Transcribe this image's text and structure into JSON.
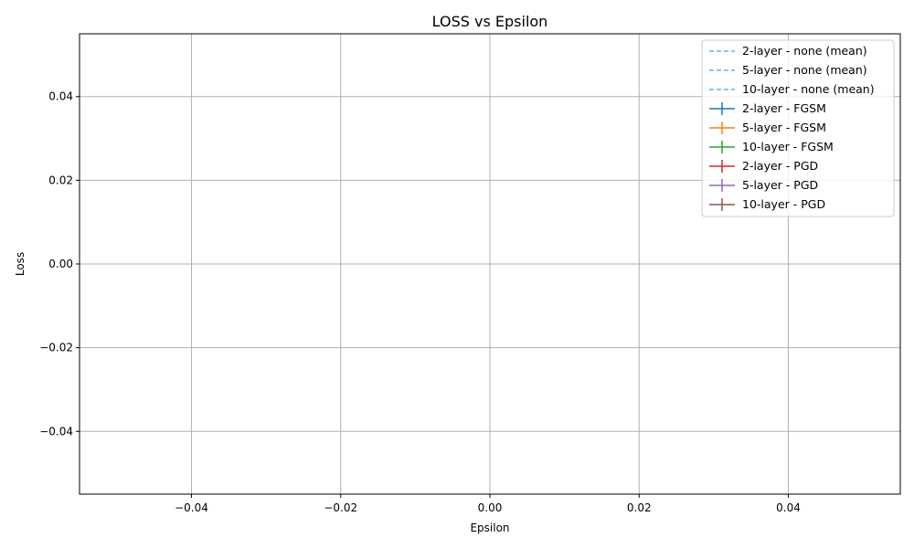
{
  "chart_data": {
    "type": "line",
    "title": "LOSS vs Epsilon",
    "xlabel": "Epsilon",
    "ylabel": "Loss",
    "xlim": [
      -0.055,
      0.055
    ],
    "ylim": [
      -0.055,
      0.055
    ],
    "xticks": [
      -0.04,
      -0.02,
      0.0,
      0.02,
      0.04
    ],
    "xtick_labels": [
      "−0.04",
      "−0.02",
      "0.00",
      "0.02",
      "0.04"
    ],
    "yticks": [
      -0.04,
      -0.02,
      0.0,
      0.02,
      0.04
    ],
    "ytick_labels": [
      "−0.04",
      "−0.02",
      "0.00",
      "0.02",
      "0.04"
    ],
    "grid": true,
    "legend_position": "top-right",
    "series": [
      {
        "name": "2-layer - none (mean)",
        "style": "dashed",
        "color": "#6baed6",
        "x": [],
        "y": []
      },
      {
        "name": "5-layer - none (mean)",
        "style": "dashed",
        "color": "#6baed6",
        "x": [],
        "y": []
      },
      {
        "name": "10-layer - none (mean)",
        "style": "dashed",
        "color": "#6baed6",
        "x": [],
        "y": []
      },
      {
        "name": "2-layer - FGSM",
        "style": "errorbar",
        "color": "#1f77b4",
        "x": [],
        "y": []
      },
      {
        "name": "5-layer - FGSM",
        "style": "errorbar",
        "color": "#ff7f0e",
        "x": [],
        "y": []
      },
      {
        "name": "10-layer - FGSM",
        "style": "errorbar",
        "color": "#2ca02c",
        "x": [],
        "y": []
      },
      {
        "name": "2-layer - PGD",
        "style": "errorbar",
        "color": "#d62728",
        "x": [],
        "y": []
      },
      {
        "name": "5-layer - PGD",
        "style": "errorbar",
        "color": "#9467bd",
        "x": [],
        "y": []
      },
      {
        "name": "10-layer - PGD",
        "style": "errorbar",
        "color": "#8c564b",
        "x": [],
        "y": []
      }
    ]
  }
}
